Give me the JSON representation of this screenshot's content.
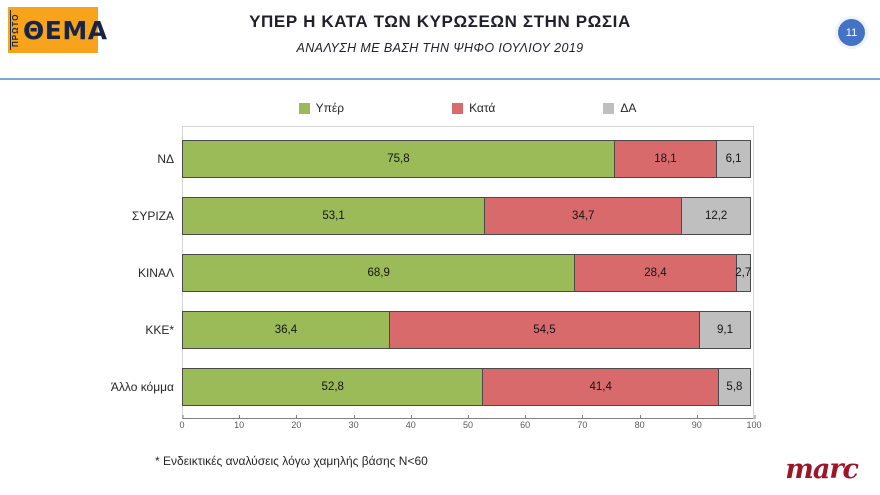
{
  "header": {
    "title": "ΥΠΕΡ Η ΚΑΤΑ ΤΩΝ ΚΥΡΩΣΕΩΝ ΣΤΗΝ ΡΩΣΙΑ",
    "subtitle": "ΑΝΑΛΥΣΗ ΜΕ ΒΑΣΗ ΤΗΝ ΨΗΦΟ ΙΟΥΛΙΟΥ 2019",
    "page_number": "11",
    "logo": {
      "top": "ΠΡΩΤΟ",
      "main": "ΘΕΜΑ"
    }
  },
  "chart_data": {
    "type": "bar",
    "orientation": "horizontal",
    "stacked": true,
    "categories": [
      "ΝΔ",
      "ΣΥΡΙΖΑ",
      "ΚΙΝΑΛ",
      "ΚΚΕ*",
      "Άλλο κόμμα"
    ],
    "series": [
      {
        "name": "Υπέρ",
        "color": "#9BBB59",
        "values": [
          75.8,
          53.1,
          68.9,
          36.4,
          52.8
        ],
        "labels": [
          "75,8",
          "53,1",
          "68,9",
          "36,4",
          "52,8"
        ]
      },
      {
        "name": "Κατά",
        "color": "#D96A6B",
        "values": [
          18.1,
          34.7,
          28.4,
          54.5,
          41.4
        ],
        "labels": [
          "18,1",
          "34,7",
          "28,4",
          "54,5",
          "41,4"
        ]
      },
      {
        "name": "ΔΑ",
        "color": "#BFBFBF",
        "values": [
          6.1,
          12.2,
          2.7,
          9.1,
          5.8
        ],
        "labels": [
          "6,1",
          "12,2",
          "2,7",
          "9,1",
          "5,8"
        ]
      }
    ],
    "xlim": [
      0,
      100
    ],
    "x_ticks": [
      "0",
      "10",
      "20",
      "30",
      "40",
      "50",
      "60",
      "70",
      "80",
      "90",
      "100"
    ],
    "legend_position": "top",
    "grid": false
  },
  "footnote": "* Ενδεικτικές αναλύσεις λόγω χαμηλής βάσης N<60",
  "branding": {
    "marc": "marc"
  }
}
